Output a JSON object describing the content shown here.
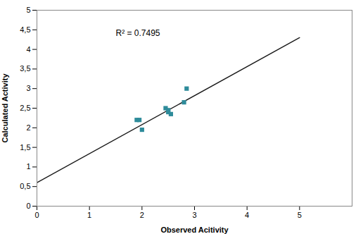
{
  "chart_data": {
    "type": "scatter",
    "xlabel": "Observed Acitivity",
    "ylabel": "Calculated Activity",
    "xlim": [
      0,
      6
    ],
    "ylim": [
      0,
      5
    ],
    "xticks": [
      0,
      1,
      2,
      3,
      4,
      5
    ],
    "yticks": [
      0,
      {
        "value": 0.5,
        "label": "0,5"
      },
      1,
      {
        "value": 1.5,
        "label": "1,5"
      },
      2,
      {
        "value": 2.5,
        "label": "2,5"
      },
      3,
      {
        "value": 3.5,
        "label": "3,5"
      },
      4,
      {
        "value": 4.5,
        "label": "4,5"
      },
      5
    ],
    "grid": false,
    "series": [
      {
        "type": "line",
        "color": "#1a1a1a",
        "x": [
          0,
          5
        ],
        "values": [
          0.6,
          4.3
        ]
      },
      {
        "type": "scatter",
        "color": "#2E8B9A",
        "marker": "square",
        "x": [
          1.9,
          1.95,
          2.0,
          2.45,
          2.5,
          2.5,
          2.55,
          2.8,
          2.85
        ],
        "values": [
          2.2,
          2.2,
          1.95,
          2.5,
          2.4,
          2.45,
          2.35,
          2.65,
          3.0
        ]
      }
    ],
    "annotations": [
      {
        "text": "R² = 0.7495",
        "x": 1.5,
        "y": 4.5
      }
    ]
  }
}
